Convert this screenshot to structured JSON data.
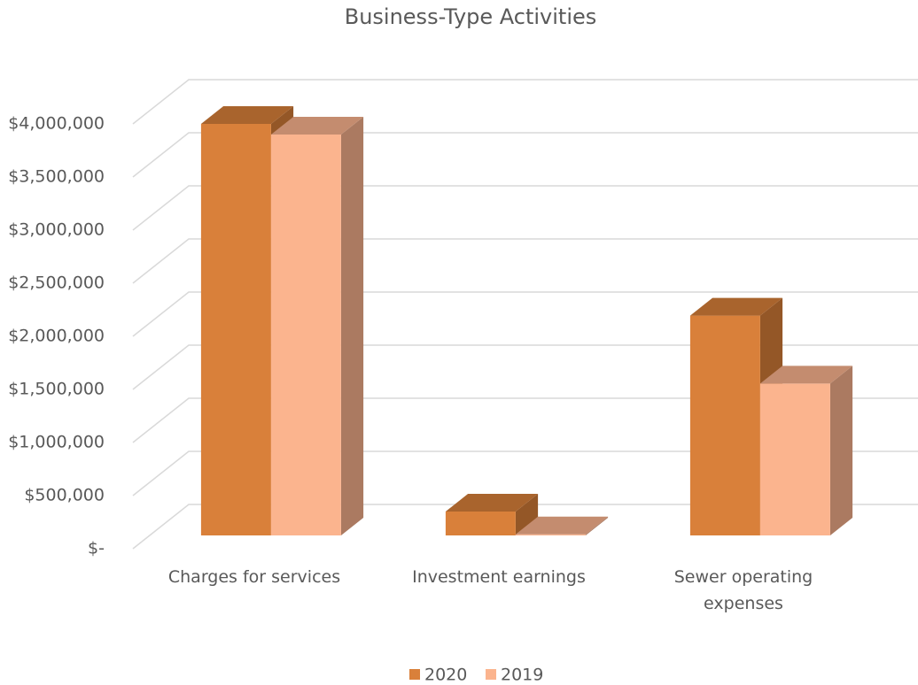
{
  "chart_data": {
    "type": "bar3d",
    "title": "Business-Type Activities",
    "categories": [
      "Charges for services",
      "Investment earnings",
      "Sewer operating expenses"
    ],
    "series": [
      {
        "name": "2020",
        "color": "#d9803a",
        "values": [
          3875000,
          225000,
          2070000
        ]
      },
      {
        "name": "2019",
        "color": "#fbb48e",
        "values": [
          3775000,
          10000,
          1430000
        ]
      }
    ],
    "ylim": [
      0,
      4000000
    ],
    "yticks": [
      {
        "value": 0,
        "label": "$-"
      },
      {
        "value": 500000,
        "label": "$500,000"
      },
      {
        "value": 1000000,
        "label": "$1,000,000"
      },
      {
        "value": 1500000,
        "label": "$1,500,000"
      },
      {
        "value": 2000000,
        "label": "$2,000,000"
      },
      {
        "value": 2500000,
        "label": "$2,500,000"
      },
      {
        "value": 3000000,
        "label": "$3,000,000"
      },
      {
        "value": 3500000,
        "label": "$3,500,000"
      },
      {
        "value": 4000000,
        "label": "$4,000,000"
      }
    ],
    "grid": true,
    "legend": "bottom"
  }
}
